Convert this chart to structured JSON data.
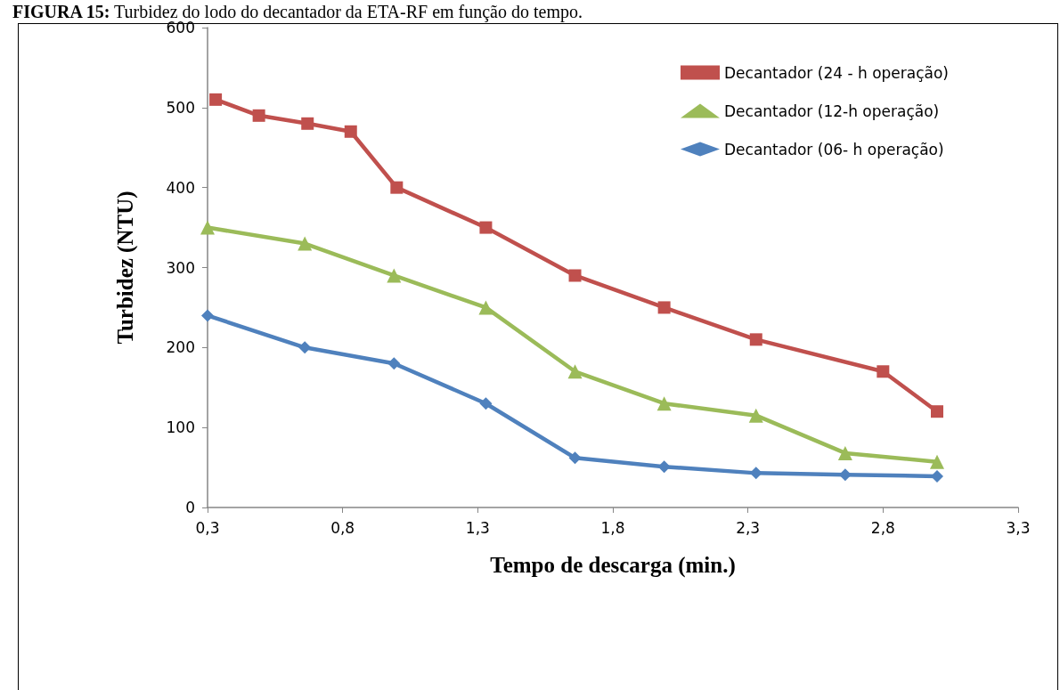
{
  "chart_data": {
    "type": "line",
    "title": "FIGURA 15: Turbidez do lodo do decantador da ETA-RF em função do tempo.",
    "xlabel": "Tempo de descarga (min.)",
    "ylabel": "Turbidez (NTU)",
    "series": [
      {
        "name": "Decantador (24 - h operação)",
        "color": "#c0504d",
        "marker": "square",
        "x": [
          0.33,
          0.49,
          0.67,
          0.83,
          1.0,
          1.33,
          1.66,
          1.99,
          2.33,
          2.8,
          3.0
        ],
        "values": [
          510,
          490,
          480,
          470,
          400,
          350,
          290,
          250,
          210,
          170,
          120
        ]
      },
      {
        "name": "Decantador (12-h operação)",
        "color": "#9bbb59",
        "marker": "triangle",
        "x": [
          0.3,
          0.66,
          0.99,
          1.33,
          1.66,
          1.99,
          2.33,
          2.66,
          3.0
        ],
        "values": [
          350,
          330,
          290,
          250,
          170,
          130,
          115,
          68,
          57
        ]
      },
      {
        "name": "Decantador (06- h operação)",
        "color": "#4f81bd",
        "marker": "diamond",
        "x": [
          0.3,
          0.66,
          0.99,
          1.33,
          1.66,
          1.99,
          2.33,
          2.66,
          3.0
        ],
        "values": [
          240,
          200,
          180,
          130,
          62,
          51,
          43,
          41,
          39
        ]
      }
    ],
    "xlim": [
      0.3,
      3.3
    ],
    "xticks": [
      {
        "value": 0.3,
        "label": "0,3"
      },
      {
        "value": 0.8,
        "label": "0,8"
      },
      {
        "value": 1.3,
        "label": "1,3"
      },
      {
        "value": 1.8,
        "label": "1,8"
      },
      {
        "value": 2.3,
        "label": "2,3"
      },
      {
        "value": 2.8,
        "label": "2,8"
      },
      {
        "value": 3.3,
        "label": "3,3"
      }
    ],
    "ylim": [
      0,
      600
    ],
    "yticks": [
      0,
      100,
      200,
      300,
      400,
      500,
      600
    ],
    "grid": false,
    "legend": "top right",
    "line_style": "solid"
  }
}
